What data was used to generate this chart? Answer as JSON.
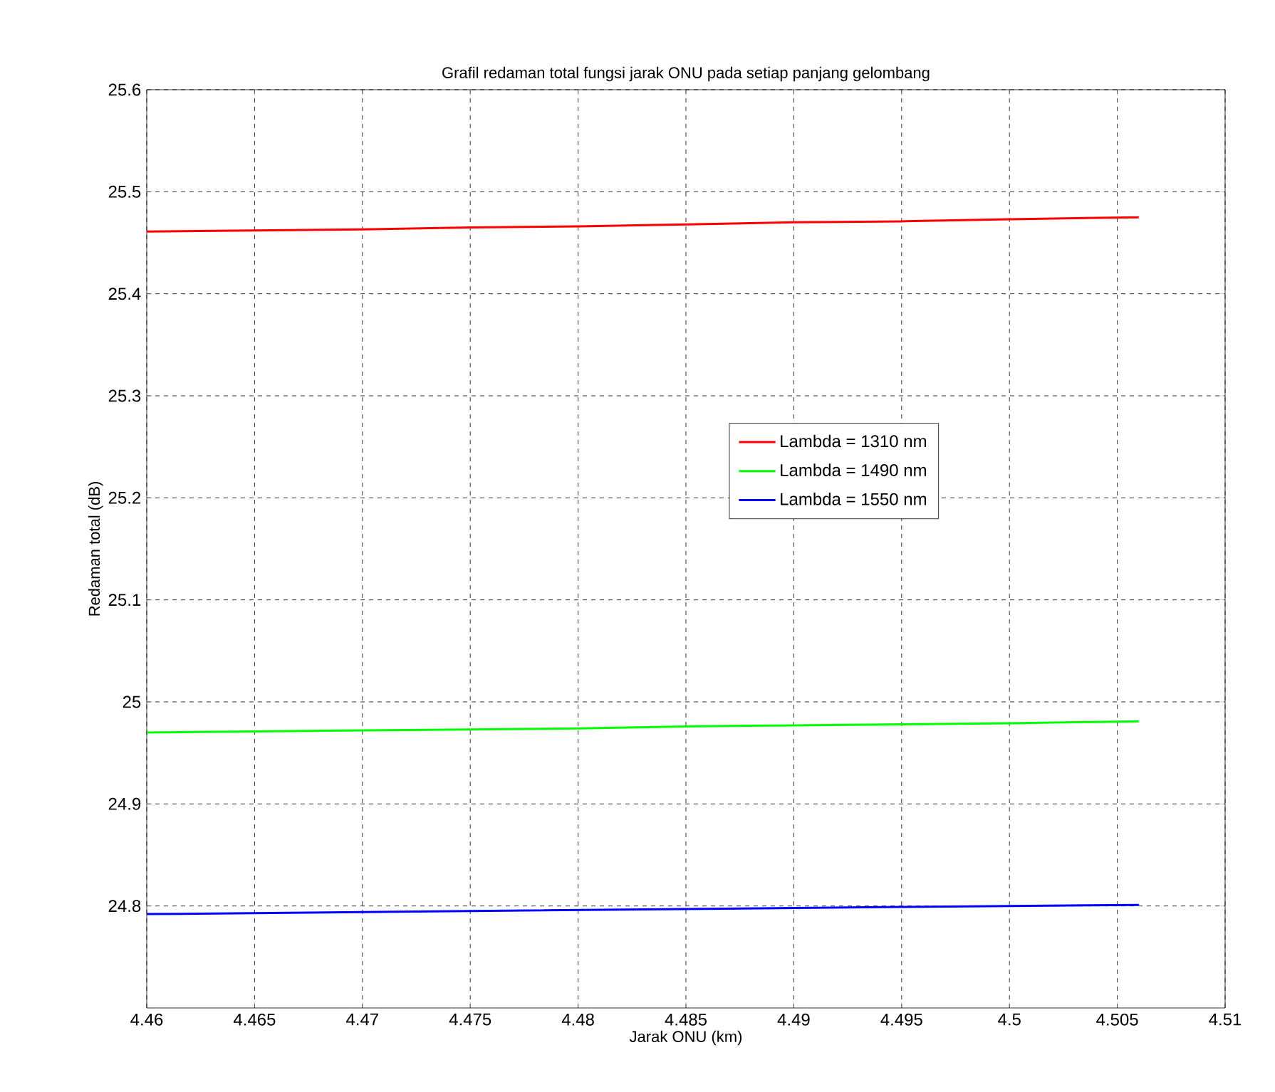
{
  "chart_data": {
    "type": "line",
    "title": "Grafil redaman total fungsi jarak ONU pada setiap panjang gelombang",
    "xlabel": "Jarak ONU (km)",
    "ylabel": "Redaman total (dB)",
    "xlim": [
      4.46,
      4.51
    ],
    "xticks": [
      4.46,
      4.465,
      4.47,
      4.475,
      4.48,
      4.485,
      4.49,
      4.495,
      4.5,
      4.505,
      4.51
    ],
    "ylim": [
      24.7,
      25.6
    ],
    "yticks": [
      24.8,
      24.9,
      25,
      25.1,
      25.2,
      25.3,
      25.4,
      25.5,
      25.6
    ],
    "grid": true,
    "legend": "right",
    "marker": "none",
    "line_style": "solid",
    "series": [
      {
        "name": "Lambda = 1310 nm",
        "color": "#ff0000",
        "x": [
          4.46,
          4.465,
          4.47,
          4.475,
          4.48,
          4.485,
          4.49,
          4.495,
          4.5,
          4.506
        ],
        "values": [
          25.461,
          25.462,
          25.463,
          25.465,
          25.466,
          25.468,
          25.47,
          25.471,
          25.473,
          25.475
        ]
      },
      {
        "name": "Lambda = 1490 nm",
        "color": "#00ff00",
        "x": [
          4.46,
          4.465,
          4.47,
          4.475,
          4.48,
          4.485,
          4.49,
          4.495,
          4.5,
          4.506
        ],
        "values": [
          24.97,
          24.971,
          24.972,
          24.973,
          24.974,
          24.976,
          24.977,
          24.978,
          24.979,
          24.981
        ]
      },
      {
        "name": "Lambda = 1550 nm",
        "color": "#0000ff",
        "x": [
          4.46,
          4.465,
          4.47,
          4.475,
          4.48,
          4.485,
          4.49,
          4.495,
          4.5,
          4.506
        ],
        "values": [
          24.792,
          24.793,
          24.794,
          24.795,
          24.796,
          24.797,
          24.798,
          24.799,
          24.8,
          24.801
        ]
      }
    ]
  }
}
